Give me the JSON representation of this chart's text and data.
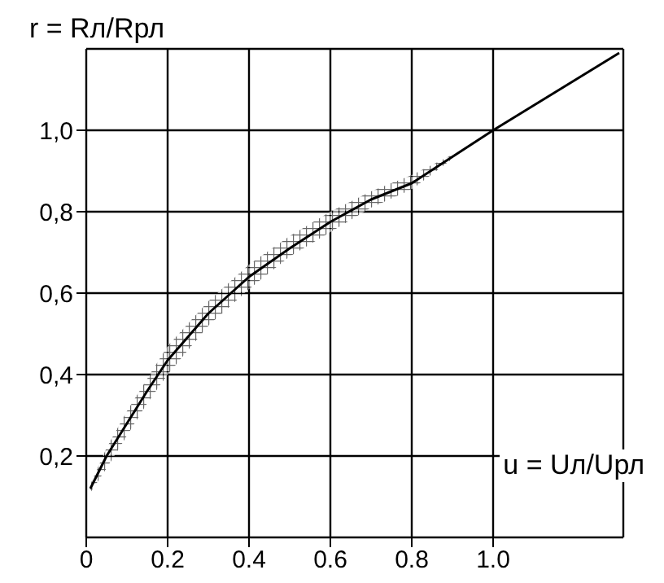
{
  "chart_data": {
    "type": "line",
    "xlabel": "u = Uл/Uрл",
    "ylabel": "r = Rл/Rрл",
    "x": [
      0.01,
      0.05,
      0.1,
      0.15,
      0.2,
      0.3,
      0.4,
      0.5,
      0.6,
      0.7,
      0.8,
      0.9,
      1.0,
      1.31
    ],
    "series": [
      {
        "color": "#000000",
        "values": [
          0.12,
          0.2,
          0.28,
          0.36,
          0.435,
          0.55,
          0.64,
          0.71,
          0.775,
          0.83,
          0.87,
          0.935,
          1.0,
          1.19
        ],
        "lower": [
          0.11,
          0.17,
          0.25,
          0.33,
          0.4,
          0.52,
          0.61,
          0.69,
          0.75,
          0.81,
          0.855,
          0.93,
          null,
          null
        ],
        "upper": [
          0.13,
          0.22,
          0.31,
          0.39,
          0.47,
          0.58,
          0.67,
          0.74,
          0.8,
          0.85,
          0.89,
          0.94,
          null,
          null
        ]
      }
    ],
    "xlim": [
      0,
      1.32
    ],
    "ylim": [
      0,
      1.2
    ],
    "xticks": [
      0,
      0.2,
      0.4,
      0.6,
      0.8,
      {
        "value": 1,
        "label": "1.0"
      }
    ],
    "yticks": [
      {
        "value": 0.2,
        "label": "0,2"
      },
      {
        "value": 0.4,
        "label": "0,4"
      },
      {
        "value": 0.6,
        "label": "0,6"
      },
      {
        "value": 0.8,
        "label": "0,8"
      },
      {
        "value": 1,
        "label": "1,0"
      }
    ],
    "grid": true,
    "marker": "none",
    "line_style": "solid"
  }
}
